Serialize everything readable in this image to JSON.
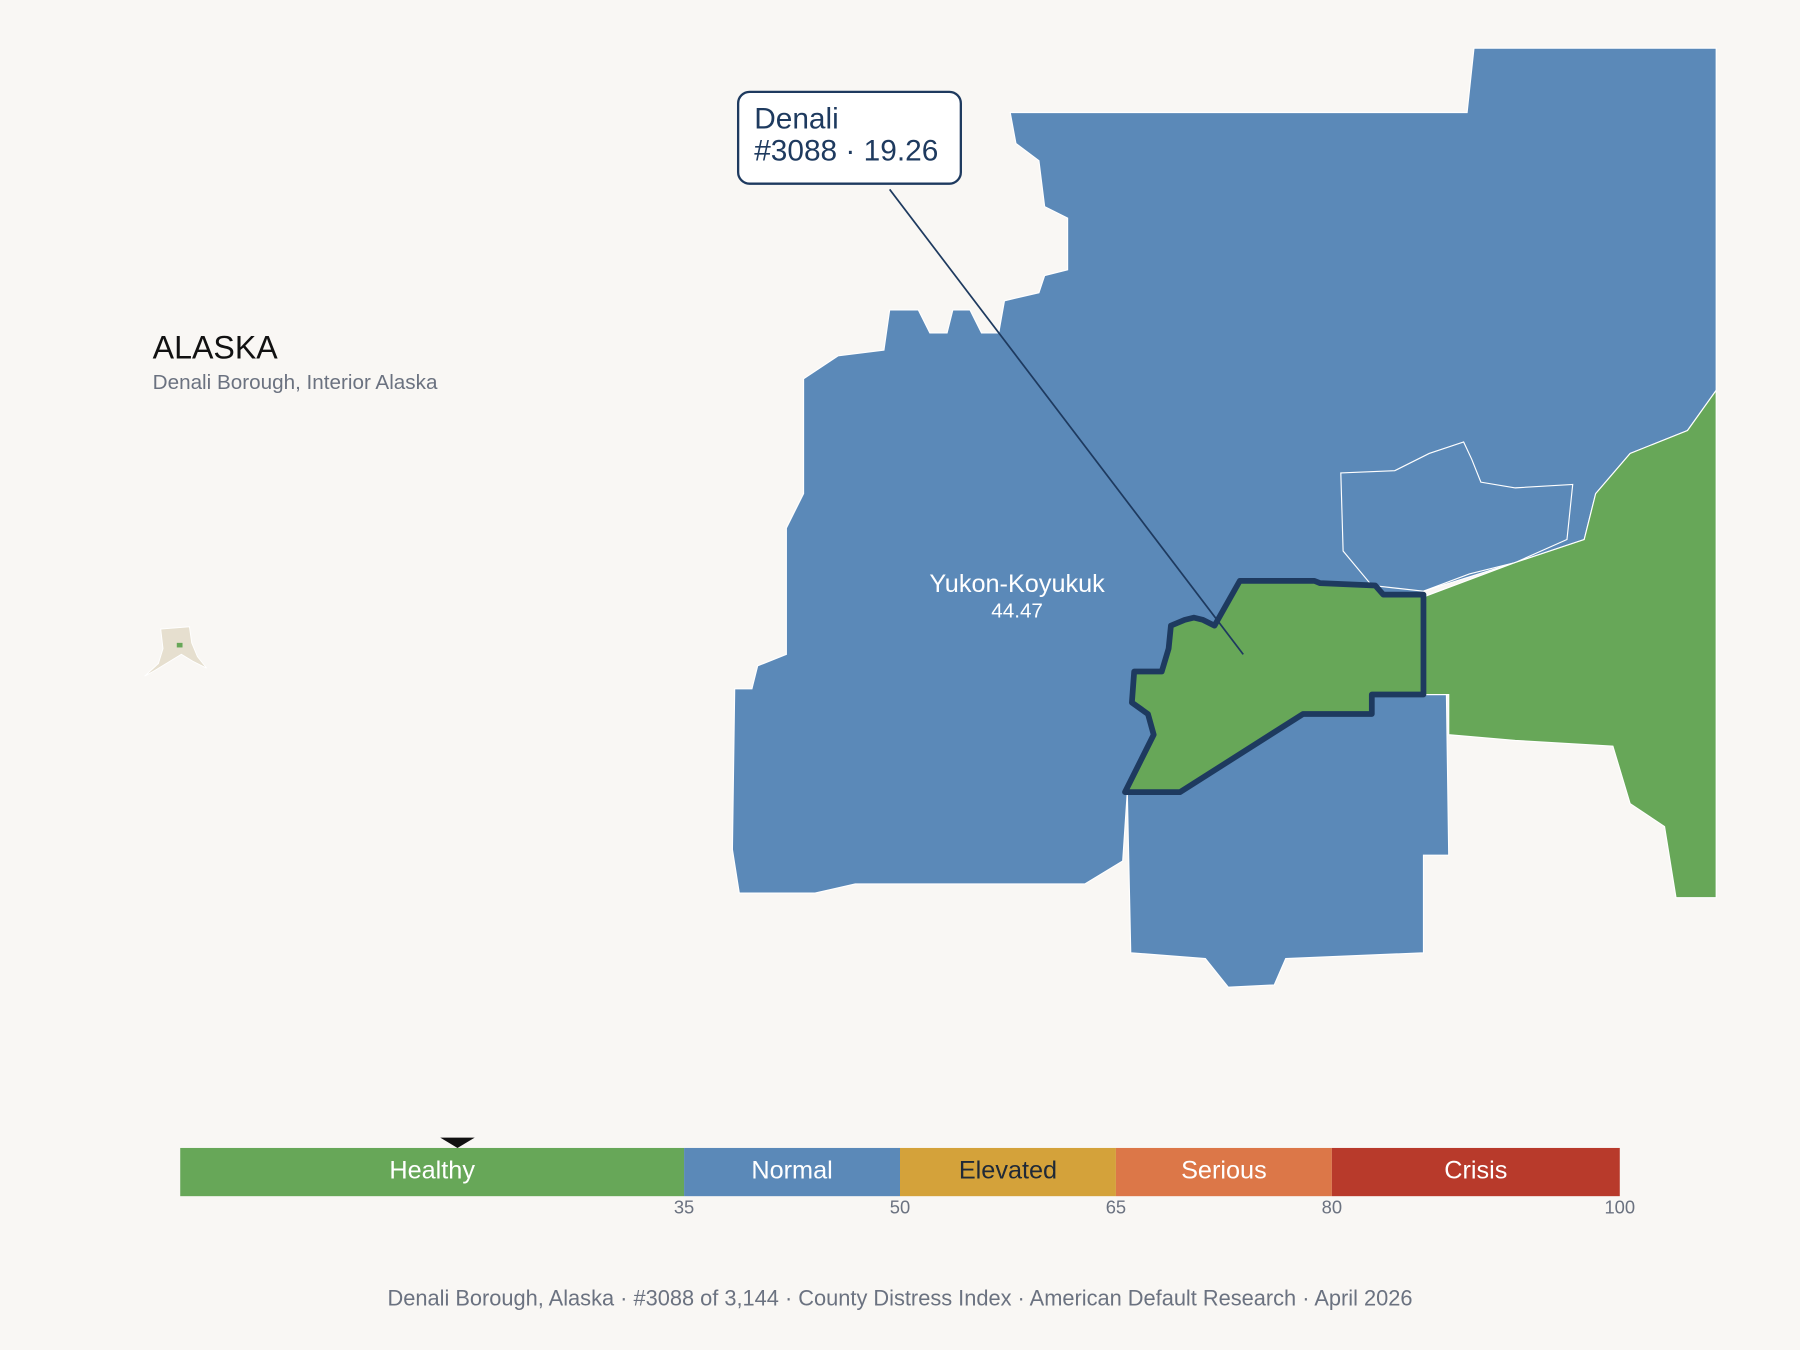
{
  "header": {
    "title": "ALASKA",
    "subtitle": "Denali Borough, Interior Alaska"
  },
  "callout": {
    "name": "Denali",
    "detail": "#3088 · 19.26"
  },
  "regions": [
    {
      "label": "Yukon-Koyukuk",
      "value": 44.47
    }
  ],
  "scale": {
    "range": [
      0,
      100
    ],
    "marker": 19.26,
    "bands": [
      {
        "label": "Healthy",
        "color": "#67a758",
        "text_color": "#ffffff"
      },
      {
        "label": "Normal",
        "color": "#5b89b8",
        "text_color": "#ffffff"
      },
      {
        "label": "Elevated",
        "color": "#d4a23a",
        "text_color": "#1f2937"
      },
      {
        "label": "Serious",
        "color": "#dc7748",
        "text_color": "#ffffff"
      },
      {
        "label": "Crisis",
        "color": "#b83a2b",
        "text_color": "#ffffff"
      }
    ],
    "ticks": [
      35,
      50,
      65,
      80,
      100
    ]
  },
  "footer": "Denali Borough, Alaska  ·  #3088 of 3,144  ·  County Distress Index  ·  American Default Research  ·  April 2026"
}
